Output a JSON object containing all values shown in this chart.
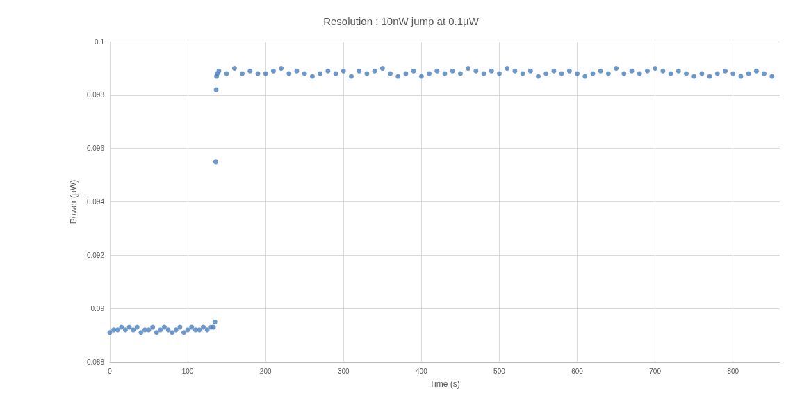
{
  "chart_data": {
    "type": "scatter",
    "title": "Resolution : 10nW jump at 0.1µW",
    "xlabel": "Time (s)",
    "ylabel": "Power (µW)",
    "xlim": [
      0,
      860
    ],
    "xticks": [
      0,
      100,
      200,
      300,
      400,
      500,
      600,
      700,
      800
    ],
    "ylim": [
      0.088,
      0.1
    ],
    "yticks": [
      0.088,
      0.09,
      0.092,
      0.094,
      0.096,
      0.098,
      0.1
    ],
    "grid": true,
    "marker": "circle",
    "series": [
      {
        "color": "#4a7ebb",
        "x": [
          0,
          5,
          10,
          15,
          20,
          25,
          30,
          35,
          40,
          45,
          50,
          55,
          60,
          65,
          70,
          75,
          80,
          85,
          90,
          95,
          100,
          105,
          110,
          115,
          120,
          125,
          130,
          133,
          135,
          136,
          136.5,
          137,
          138,
          140,
          150,
          160,
          170,
          180,
          190,
          200,
          210,
          220,
          230,
          240,
          250,
          260,
          270,
          280,
          290,
          300,
          310,
          320,
          330,
          340,
          350,
          360,
          370,
          380,
          390,
          400,
          410,
          420,
          430,
          440,
          450,
          460,
          470,
          480,
          490,
          500,
          510,
          520,
          530,
          540,
          550,
          560,
          570,
          580,
          590,
          600,
          610,
          620,
          630,
          640,
          650,
          660,
          670,
          680,
          690,
          700,
          710,
          720,
          730,
          740,
          750,
          760,
          770,
          780,
          790,
          800,
          810,
          820,
          830,
          840,
          850
        ],
        "values": [
          0.0891,
          0.0892,
          0.0892,
          0.0893,
          0.0892,
          0.0893,
          0.0892,
          0.0893,
          0.0891,
          0.0892,
          0.0892,
          0.0893,
          0.0891,
          0.0892,
          0.0893,
          0.0892,
          0.0891,
          0.0892,
          0.0893,
          0.0891,
          0.0892,
          0.0893,
          0.0892,
          0.0892,
          0.0893,
          0.0892,
          0.0893,
          0.0893,
          0.0895,
          0.0955,
          0.0982,
          0.0987,
          0.0988,
          0.0989,
          0.0988,
          0.099,
          0.0988,
          0.0989,
          0.0988,
          0.0988,
          0.0989,
          0.099,
          0.0988,
          0.0989,
          0.0988,
          0.0987,
          0.0988,
          0.0989,
          0.0988,
          0.0989,
          0.0987,
          0.0989,
          0.0988,
          0.0989,
          0.099,
          0.0988,
          0.0987,
          0.0988,
          0.0989,
          0.0987,
          0.0988,
          0.0989,
          0.0988,
          0.0989,
          0.0988,
          0.099,
          0.0989,
          0.0988,
          0.0989,
          0.0988,
          0.099,
          0.0989,
          0.0988,
          0.0989,
          0.0987,
          0.0988,
          0.0989,
          0.0988,
          0.0989,
          0.0988,
          0.0987,
          0.0988,
          0.0989,
          0.0988,
          0.099,
          0.0988,
          0.0989,
          0.0988,
          0.0989,
          0.099,
          0.0989,
          0.0988,
          0.0989,
          0.0988,
          0.0987,
          0.0988,
          0.0987,
          0.0988,
          0.0989,
          0.0988,
          0.0987,
          0.0988,
          0.0989,
          0.0988,
          0.0987
        ]
      }
    ]
  }
}
